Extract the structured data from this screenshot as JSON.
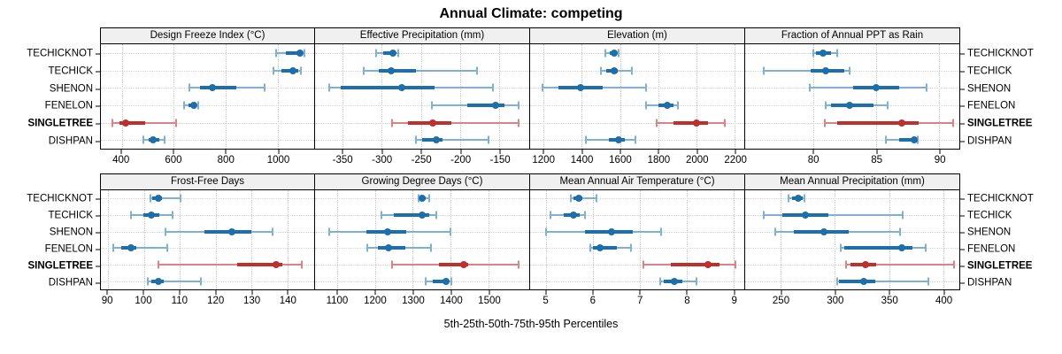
{
  "title": "Annual Climate: competing",
  "xlabel": "5th-25th-50th-75th-95th Percentiles",
  "colors": {
    "blue": "#1e6fa9",
    "blue_light": "#7eb1d4",
    "red": "#be2f2f",
    "red_light": "#d98585",
    "strip_bg": "#f0f0f0",
    "grid": "#cccccc",
    "panel_border": "#000000"
  },
  "stations": [
    {
      "label": "TECHICKNOT",
      "emphasis": false
    },
    {
      "label": "TECHICK",
      "emphasis": false
    },
    {
      "label": "SHENON",
      "emphasis": false
    },
    {
      "label": "FENELON",
      "emphasis": false
    },
    {
      "label": "SINGLETREE",
      "emphasis": true
    },
    {
      "label": "DISHPAN",
      "emphasis": false
    }
  ],
  "chart_data": {
    "type": "dotplot",
    "subtype": "percentile-whisker-trellis",
    "title": "Annual Climate: competing",
    "xlabel": "5th-25th-50th-75th-95th Percentiles",
    "percentiles_shown": [
      5,
      25,
      50,
      75,
      95
    ],
    "highlighted_series": "SINGLETREE",
    "grid": true,
    "layout": {
      "rows": 2,
      "cols": 4,
      "y_labels_left": true,
      "y_labels_right": true
    },
    "panels": [
      {
        "title": "Design Freeze Index (°C)",
        "xlim": [
          320,
          1140
        ],
        "ticks": [
          400,
          600,
          800,
          1000
        ],
        "series": {
          "TECHICKNOT": [
            995,
            1030,
            1085,
            1095,
            1103
          ],
          "TECHICK": [
            985,
            1015,
            1060,
            1078,
            1088
          ],
          "SHENON": [
            660,
            700,
            750,
            840,
            950
          ],
          "FENELON": [
            640,
            658,
            676,
            688,
            696
          ],
          "SINGLETREE": [
            365,
            390,
            415,
            490,
            610
          ],
          "DISHPAN": [
            485,
            505,
            520,
            545,
            565
          ]
        }
      },
      {
        "title": "Effective Precipitation (mm)",
        "xlim": [
          -385,
          -112
        ],
        "ticks": [
          -350,
          -300,
          -250,
          -200,
          -150
        ],
        "series": {
          "TECHICKNOT": [
            -307,
            -298,
            -286,
            -282,
            -279
          ],
          "TECHICK": [
            -323,
            -304,
            -288,
            -256,
            -179
          ],
          "SHENON": [
            -367,
            -352,
            -274,
            -233,
            -158
          ],
          "FENELON": [
            -236,
            -191,
            -155,
            -143,
            -126
          ],
          "SINGLETREE": [
            -287,
            -266,
            -235,
            -211,
            -125
          ],
          "DISHPAN": [
            -256,
            -248,
            -231,
            -223,
            -164
          ]
        }
      },
      {
        "title": "Elevation (m)",
        "xlim": [
          1130,
          2250
        ],
        "ticks": [
          1200,
          1400,
          1600,
          1800,
          2000,
          2200
        ],
        "series": {
          "TECHICKNOT": [
            1525,
            1545,
            1570,
            1580,
            1592
          ],
          "TECHICK": [
            1500,
            1527,
            1570,
            1590,
            1660
          ],
          "SHENON": [
            1195,
            1280,
            1395,
            1510,
            1735
          ],
          "FENELON": [
            1735,
            1802,
            1848,
            1878,
            1902
          ],
          "SINGLETREE": [
            1790,
            1880,
            2000,
            2060,
            2150
          ],
          "DISHPAN": [
            1420,
            1540,
            1595,
            1625,
            1680
          ]
        }
      },
      {
        "title": "Fraction of Annual PPT as Rain",
        "xlim": [
          74.6,
          91.6
        ],
        "ticks": [
          80,
          85,
          90
        ],
        "series": {
          "TECHICKNOT": [
            80,
            80.2,
            80.8,
            81.4,
            81.9
          ],
          "TECHICK": [
            76.1,
            79.8,
            81,
            82.5,
            82.9
          ],
          "SHENON": [
            79.7,
            83.2,
            85,
            86.8,
            89
          ],
          "FENELON": [
            81,
            81.4,
            82.9,
            84.8,
            85.9
          ],
          "SINGLETREE": [
            80.9,
            81.9,
            87,
            88.4,
            91.1
          ],
          "DISHPAN": [
            85.8,
            86.8,
            88,
            88.1,
            88.3
          ]
        }
      },
      {
        "title": "Frost-Free Days",
        "xlim": [
          88,
          147.5
        ],
        "ticks": [
          90,
          100,
          110,
          120,
          130,
          140
        ],
        "series": {
          "TECHICKNOT": [
            101.7,
            102.3,
            104,
            105.1,
            110.2
          ],
          "TECHICK": [
            96.4,
            99.8,
            102,
            104.3,
            108
          ],
          "SHENON": [
            106,
            117,
            124.5,
            130,
            136
          ],
          "FENELON": [
            91.4,
            93.8,
            96.4,
            97.8,
            106.4
          ],
          "SINGLETREE": [
            104,
            126,
            137,
            138.6,
            144
          ],
          "DISHPAN": [
            101,
            102,
            104,
            105.6,
            116
          ]
        }
      },
      {
        "title": "Growing Degree Days (°C)",
        "xlim": [
          1042,
          1607
        ],
        "ticks": [
          1100,
          1200,
          1300,
          1400,
          1500
        ],
        "series": {
          "TECHICKNOT": [
            1315,
            1318,
            1325,
            1333,
            1343
          ],
          "TECHICK": [
            1218,
            1250,
            1325,
            1344,
            1362
          ],
          "SHENON": [
            1080,
            1177,
            1233,
            1282,
            1400
          ],
          "FENELON": [
            1180,
            1208,
            1235,
            1280,
            1348
          ],
          "SINGLETREE": [
            1245,
            1370,
            1435,
            1446,
            1580
          ],
          "DISHPAN": [
            1333,
            1352,
            1388,
            1395,
            1401
          ]
        }
      },
      {
        "title": "Mean Annual Air Temperature (°C)",
        "xlim": [
          4.67,
          9.23
        ],
        "ticks": [
          5,
          6,
          7,
          8,
          9
        ],
        "series": {
          "TECHICKNOT": [
            5.54,
            5.59,
            5.7,
            5.78,
            6.08
          ],
          "TECHICK": [
            5.11,
            5.39,
            5.59,
            5.72,
            5.84
          ],
          "SHENON": [
            5.0,
            5.83,
            6.41,
            6.86,
            7.46
          ],
          "FENELON": [
            5.95,
            6.01,
            6.15,
            6.51,
            6.81
          ],
          "SINGLETREE": [
            7.09,
            7.66,
            8.45,
            8.7,
            9.04
          ],
          "DISHPAN": [
            7.44,
            7.51,
            7.74,
            7.92,
            8.22
          ]
        }
      },
      {
        "title": "Mean Annual Precipitation (mm)",
        "xlim": [
          217,
          415
        ],
        "ticks": [
          250,
          300,
          350,
          400
        ],
        "series": {
          "TECHICKNOT": [
            257,
            260,
            266,
            270,
            272
          ],
          "TECHICK": [
            234,
            251,
            273,
            294,
            363
          ],
          "SHENON": [
            245,
            262,
            290,
            313,
            360
          ],
          "FENELON": [
            305,
            309,
            362,
            372,
            384
          ],
          "SINGLETREE": [
            310,
            314,
            328,
            338,
            410
          ],
          "DISHPAN": [
            302,
            304,
            327,
            337,
            386
          ]
        }
      }
    ]
  }
}
